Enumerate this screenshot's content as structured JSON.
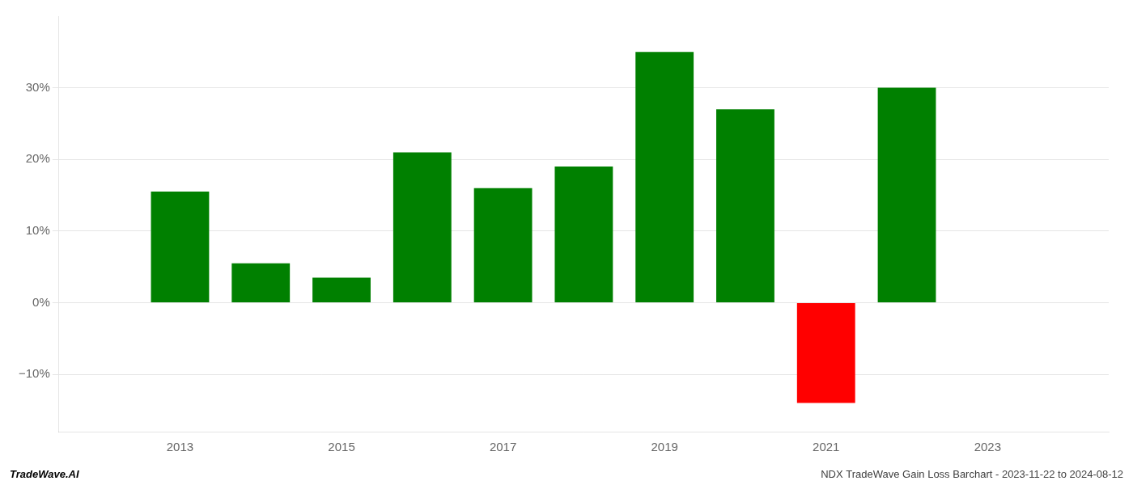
{
  "chart_data": {
    "type": "bar",
    "x": [
      2013,
      2014,
      2015,
      2016,
      2017,
      2018,
      2019,
      2020,
      2021,
      2022
    ],
    "values": [
      15.5,
      5.5,
      3.5,
      21.0,
      16.0,
      19.0,
      35.0,
      27.0,
      -14.0,
      30.0
    ],
    "colors": [
      "#008000",
      "#008000",
      "#008000",
      "#008000",
      "#008000",
      "#008000",
      "#008000",
      "#008000",
      "#ff0000",
      "#008000"
    ],
    "xlim": [
      2011.5,
      2024.5
    ],
    "xticks": [
      2013,
      2015,
      2017,
      2019,
      2021,
      2023
    ],
    "ylim": [
      -18,
      40
    ],
    "yticks": [
      {
        "value": -10,
        "label": "−10%"
      },
      {
        "value": 0,
        "label": "0%"
      },
      {
        "value": 10,
        "label": "10%"
      },
      {
        "value": 20,
        "label": "20%"
      },
      {
        "value": 30,
        "label": "30%"
      }
    ],
    "grid": true,
    "annotations": [
      "TradeWave.AI",
      "NDX TradeWave Gain Loss Barchart - 2023-11-22 to 2024-08-12"
    ]
  }
}
